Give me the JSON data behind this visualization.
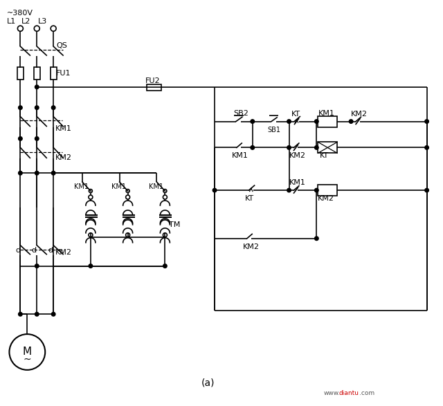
{
  "bg_color": "#ffffff",
  "line_color": "#000000",
  "title": "(a)",
  "watermark_text": "www.",
  "watermark_red": "diantu",
  "watermark_end": ".com"
}
